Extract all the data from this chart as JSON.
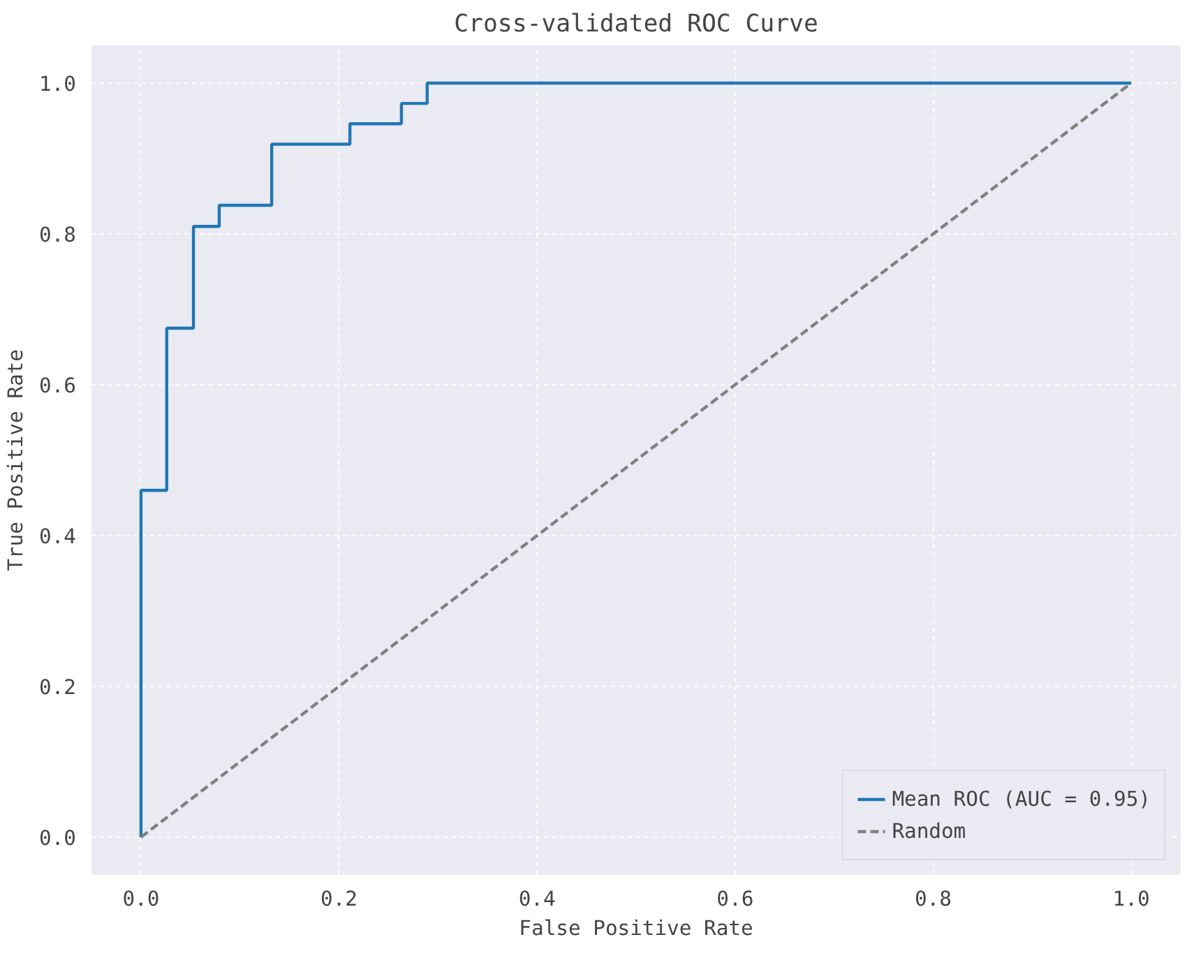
{
  "chart_data": {
    "type": "step",
    "title": "Cross-validated ROC Curve",
    "xlabel": "False Positive Rate",
    "ylabel": "True Positive Rate",
    "xlim": [
      -0.05,
      1.05
    ],
    "ylim": [
      -0.05,
      1.05
    ],
    "xticks": [
      {
        "value": 0,
        "label": "0.0"
      },
      0.2,
      0.4,
      0.6,
      0.8,
      {
        "value": 1,
        "label": "1.0"
      }
    ],
    "yticks": [
      {
        "value": 0,
        "label": "0.0"
      },
      0.2,
      0.4,
      0.6,
      0.8,
      {
        "value": 1,
        "label": "1.0"
      }
    ],
    "series": [
      {
        "name": "Mean ROC (AUC = 0.95)",
        "color": "#1f77b4",
        "line_style": "solid",
        "x": [
          0,
          0,
          0.026,
          0.053,
          0.079,
          0.132,
          0.211,
          0.263,
          0.289,
          1.0
        ],
        "values": [
          0,
          0.46,
          0.675,
          0.81,
          0.838,
          0.919,
          0.946,
          0.973,
          1.0,
          1.0
        ]
      },
      {
        "name": "Random",
        "type": "line",
        "color": "#808080",
        "line_style": "dashed",
        "x": [
          0,
          1
        ],
        "values": [
          0,
          1
        ]
      }
    ],
    "grid": true,
    "legend": "bottom right"
  }
}
